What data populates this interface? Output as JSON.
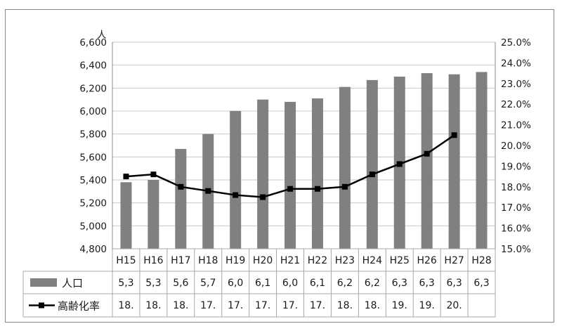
{
  "chart_data": {
    "type": "bar",
    "categories": [
      "H15",
      "H16",
      "H17",
      "H18",
      "H19",
      "H20",
      "H21",
      "H22",
      "H23",
      "H24",
      "H25",
      "H26",
      "H27",
      "H28"
    ],
    "y_unit_label": "人",
    "ylim": [
      4800,
      6600
    ],
    "y_ticks": [
      "4,800",
      "5,000",
      "5,200",
      "5,400",
      "5,600",
      "5,800",
      "6,000",
      "6,200",
      "6,400",
      "6,600"
    ],
    "y2lim": [
      15.0,
      25.0
    ],
    "y2_ticks": [
      "15.0%",
      "16.0%",
      "17.0%",
      "18.0%",
      "19.0%",
      "20.0%",
      "21.0%",
      "22.0%",
      "23.0%",
      "24.0%",
      "25.0%"
    ],
    "grid": true,
    "series": [
      {
        "name": "人口",
        "type": "bar",
        "axis": "left",
        "color": "#808080",
        "values": [
          5380,
          5400,
          5670,
          5800,
          6000,
          6100,
          6080,
          6110,
          6210,
          6270,
          6300,
          6330,
          6320,
          6340
        ],
        "table_labels": [
          "5,3",
          "5,3",
          "5,6",
          "5,7",
          "6,0",
          "6,1",
          "6,0",
          "6,1",
          "6,2",
          "6,2",
          "6,3",
          "6,3",
          "6,3",
          "6,3"
        ]
      },
      {
        "name": "高齢化率",
        "type": "line",
        "axis": "right",
        "color": "#000000",
        "values": [
          18.5,
          18.6,
          18.0,
          17.8,
          17.6,
          17.5,
          17.9,
          17.9,
          18.0,
          18.6,
          19.1,
          19.6,
          20.5,
          null
        ],
        "table_labels": [
          "18.",
          "18.",
          "18.",
          "17.",
          "17.",
          "17.",
          "17.",
          "17.",
          "18.",
          "18.",
          "19.",
          "19.",
          "20.",
          ""
        ]
      }
    ]
  }
}
